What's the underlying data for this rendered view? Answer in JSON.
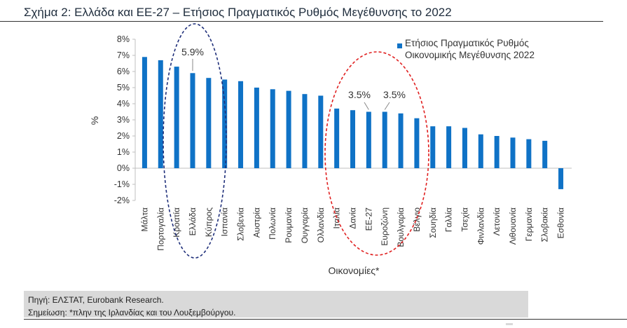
{
  "header": {
    "title": "Σχήμα 2: Ελλάδα και ΕΕ-27 – Ετήσιος Πραγματικός Ρυθμός Μεγέθυνσης το 2022"
  },
  "footer": {
    "source": "Πηγή: ΕΛΣΤΑΤ, Eurobank Research.",
    "note": "Σημείωση: *πλην της Ιρλανδίας και του Λουξεμβούργου."
  },
  "legend": {
    "line1": "Ετήσιος Πραγματικός Ρυθμός",
    "line2": "Οικονομικής Μεγέθυνσης 2022"
  },
  "colors": {
    "bar": "#0f72c6",
    "ellipse_greece": "#1f2f7a",
    "ellipse_euro": "#e02020"
  },
  "chart_data": {
    "type": "bar",
    "xlabel": "Οικονομίες*",
    "ylabel": "%",
    "ylim": [
      -2,
      8
    ],
    "yticks": [
      -2,
      -1,
      0,
      1,
      2,
      3,
      4,
      5,
      6,
      7,
      8
    ],
    "ytick_labels": [
      "-2%",
      "-1%",
      "0%",
      "1%",
      "2%",
      "3%",
      "4%",
      "5%",
      "6%",
      "7%",
      "8%"
    ],
    "grid": false,
    "legend_position": "top-right",
    "categories": [
      "Μάλτα",
      "Πορτογαλία",
      "Κροατία",
      "Ελλάδα",
      "Κύπρος",
      "Ισπανία",
      "Σλοβενία",
      "Αυστρία",
      "Πολωνία",
      "Ρουμανία",
      "Ουγγαρία",
      "Ολλανδία",
      "Ιταλία",
      "Δανία",
      "ΕΕ-27",
      "Ευροζώνη",
      "Βουλγαρία",
      "Βέλγιο",
      "Σουηδία",
      "Γαλλία",
      "Τσεχία",
      "Φινλανδία",
      "Λετονία",
      "Λιθουανία",
      "Γερμανία",
      "Σλοβακία",
      "Εσθονία"
    ],
    "series": [
      {
        "name": "Ετήσιος Πραγματικός Ρυθμός Οικονομικής Μεγέθυνσης 2022",
        "values": [
          6.9,
          6.7,
          6.3,
          5.9,
          5.6,
          5.5,
          5.4,
          5.0,
          4.9,
          4.8,
          4.6,
          4.5,
          3.7,
          3.6,
          3.5,
          3.5,
          3.4,
          3.1,
          2.6,
          2.6,
          2.5,
          2.1,
          2.0,
          1.9,
          1.8,
          1.7,
          -1.3
        ]
      }
    ],
    "annotations": [
      {
        "text": "5.9%",
        "category": "Ελλάδα"
      },
      {
        "text": "3.5%",
        "category": "ΕΕ-27"
      },
      {
        "text": "3.5%",
        "category": "Ευροζώνη"
      }
    ]
  }
}
